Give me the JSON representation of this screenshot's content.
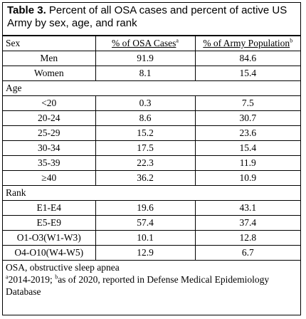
{
  "table": {
    "title_bold": "Table 3.",
    "title_rest": " Percent of all OSA cases and percent of active US Army by sex, age, and rank",
    "header": {
      "col1": "Sex",
      "col2": "% of OSA Cases",
      "col2_sup": "a",
      "col3": "% of Army Population",
      "col3_sup": "b"
    },
    "sections": [
      {
        "label": "Sex",
        "rows": [
          {
            "label": "Men",
            "osa": "91.9",
            "army": "84.6"
          },
          {
            "label": "Women",
            "osa": "8.1",
            "army": "15.4"
          }
        ]
      },
      {
        "label": "Age",
        "rows": [
          {
            "label": "<20",
            "osa": "0.3",
            "army": "7.5"
          },
          {
            "label": "20-24",
            "osa": "8.6",
            "army": "30.7"
          },
          {
            "label": "25-29",
            "osa": "15.2",
            "army": "23.6"
          },
          {
            "label": "30-34",
            "osa": "17.5",
            "army": "15.4"
          },
          {
            "label": "35-39",
            "osa": "22.3",
            "army": "11.9"
          },
          {
            "label": "≥40",
            "osa": "36.2",
            "army": "10.9"
          }
        ]
      },
      {
        "label": "Rank",
        "rows": [
          {
            "label": "E1-E4",
            "osa": "19.6",
            "army": "43.1"
          },
          {
            "label": "E5-E9",
            "osa": "57.4",
            "army": "37.4"
          },
          {
            "label": "O1-O3(W1-W3)",
            "osa": "10.1",
            "army": "12.8"
          },
          {
            "label": "O4-O10(W4-W5)",
            "osa": "12.9",
            "army": "6.7"
          }
        ]
      }
    ],
    "footnotes": {
      "abbrev": "OSA, obstructive sleep apnea",
      "note_a_sup": "a",
      "note_a": "2014-2019; ",
      "note_b_sup": "b",
      "note_b": "as of 2020, reported in Defense Medical Epidemiology Database"
    }
  }
}
